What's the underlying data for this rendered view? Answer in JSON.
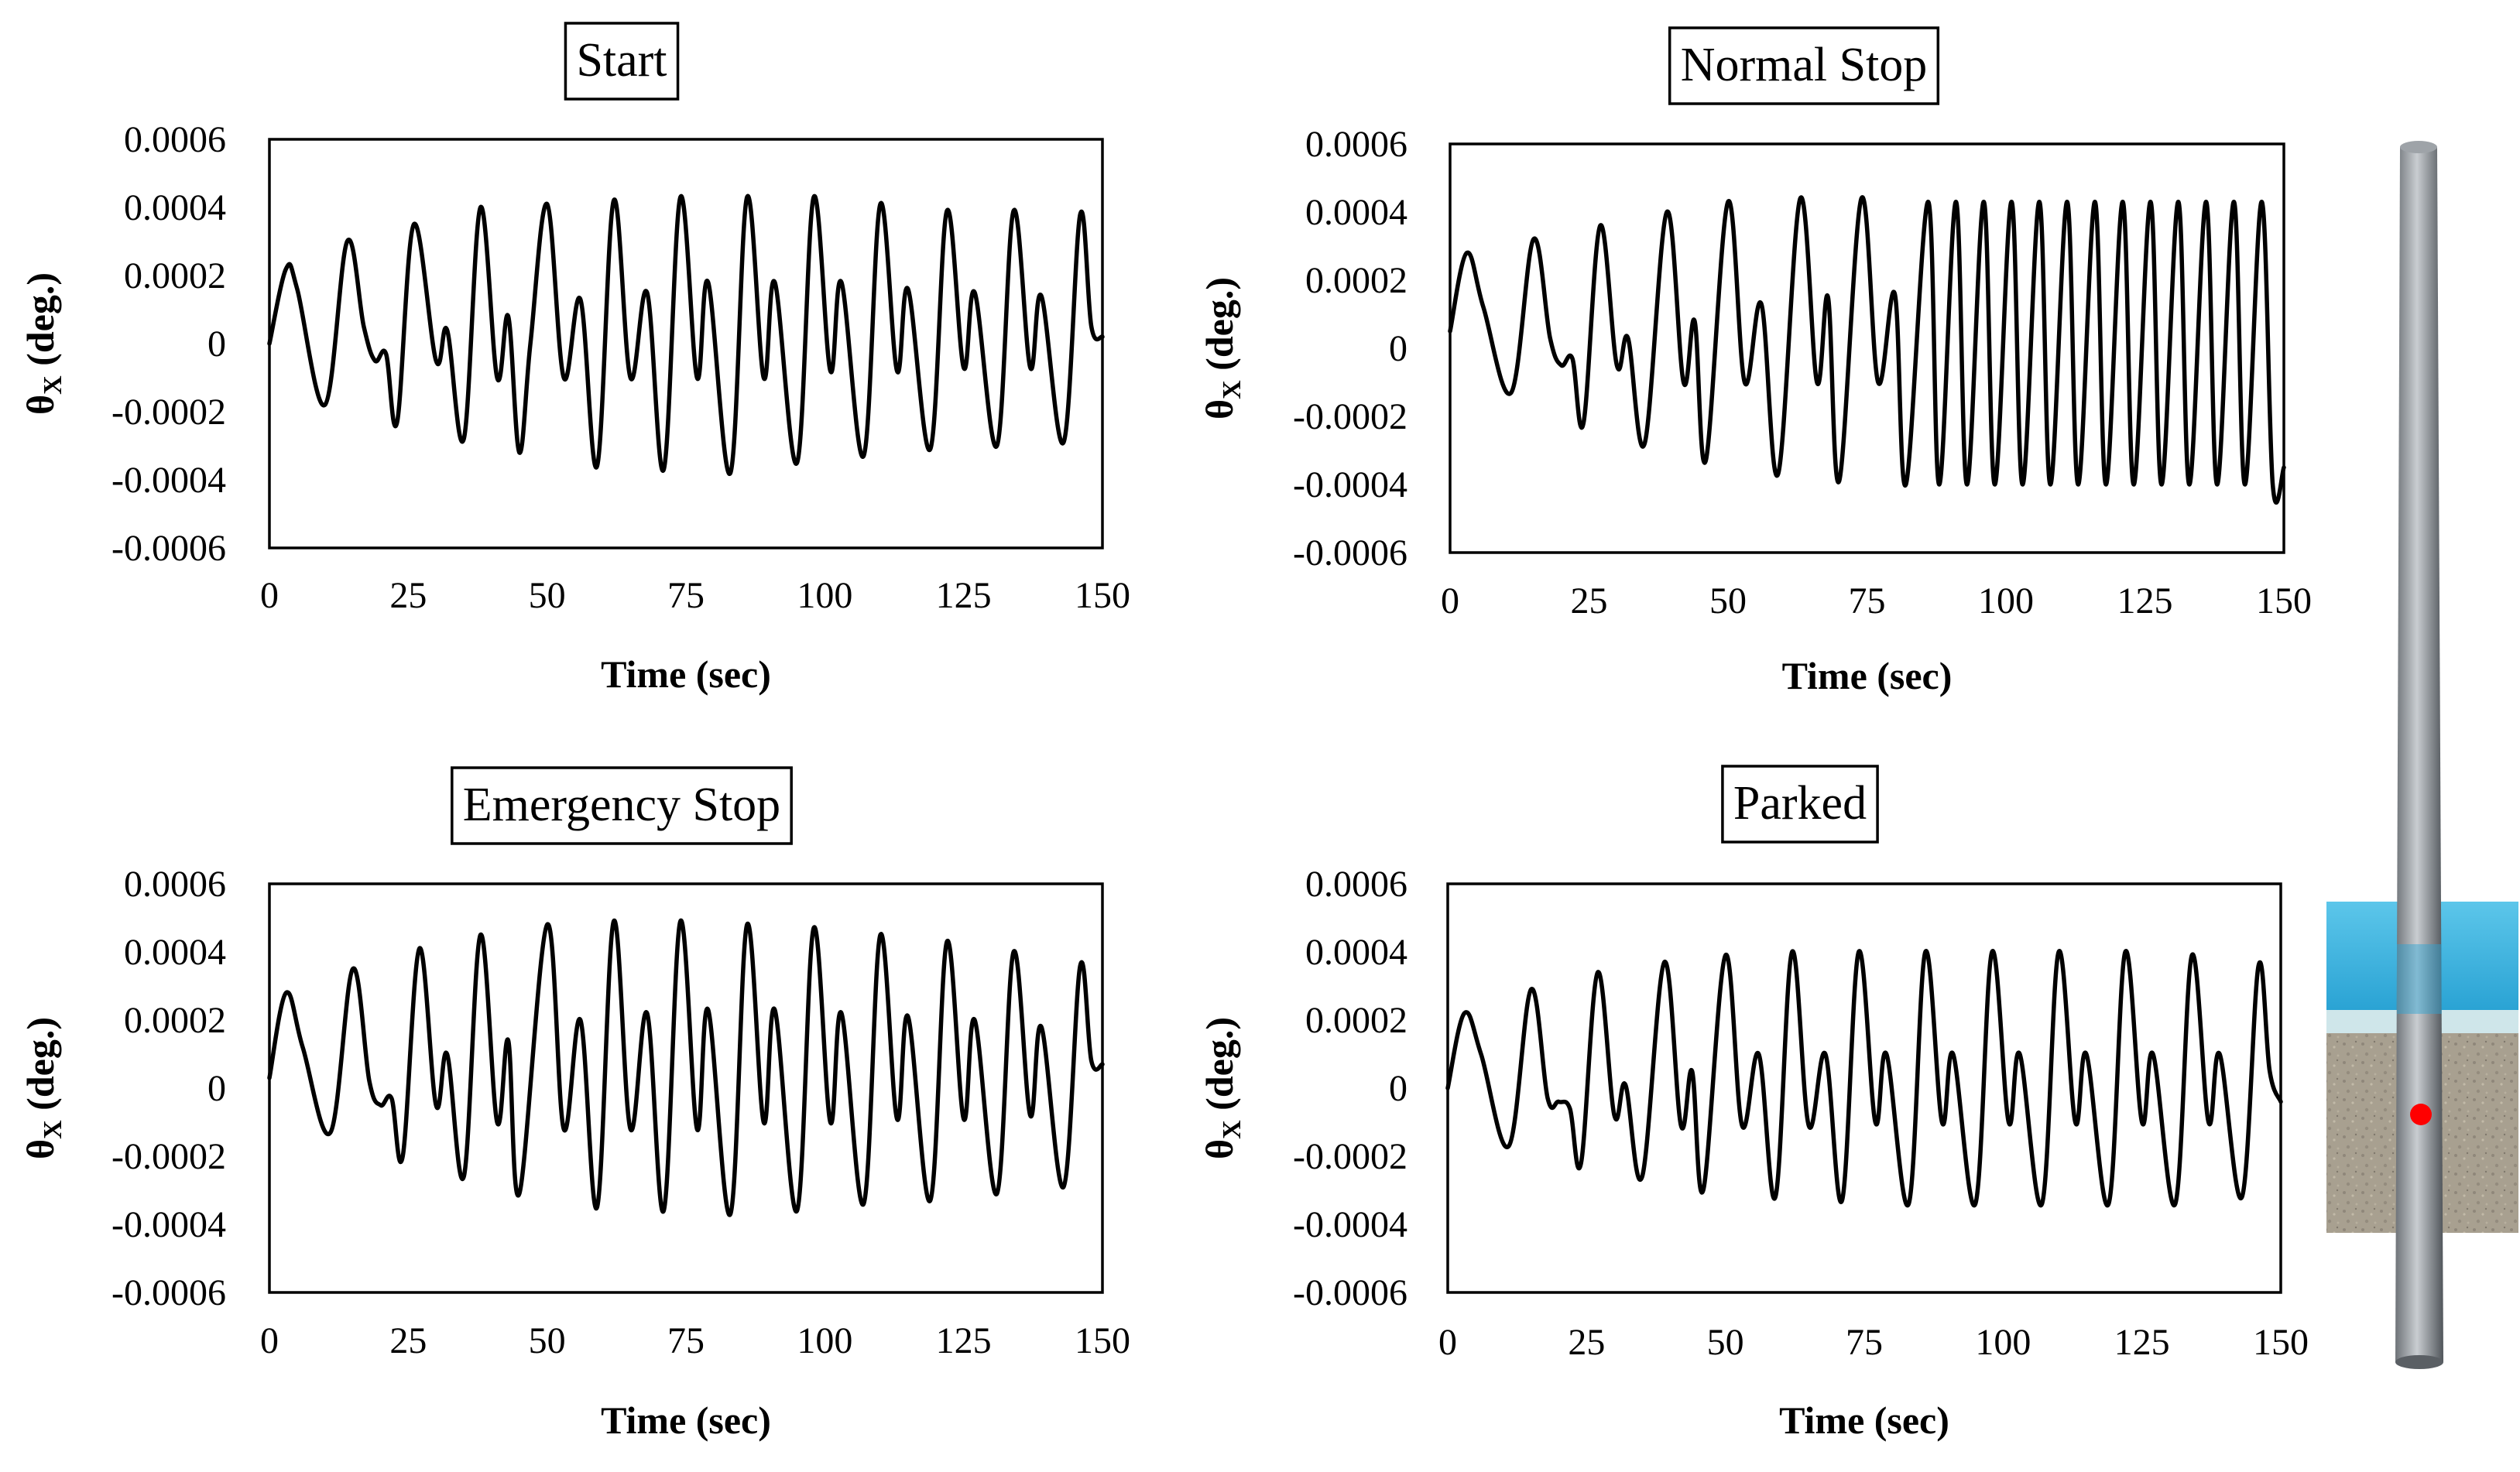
{
  "figure": {
    "marker_color": "#ff0000",
    "water_color": "#38b6e0",
    "pile_color": "#8a8f94"
  },
  "chart_data": [
    {
      "type": "line",
      "title": "Start",
      "xlabel": "Time (sec)",
      "ylabel_symbol": "θ",
      "ylabel_sub": "X",
      "ylabel_unit": " (deg.)",
      "xlim": [
        0,
        150
      ],
      "ylim": [
        -0.0006,
        0.0006
      ],
      "x_ticks": [
        "0",
        "25",
        "50",
        "75",
        "100",
        "125",
        "150"
      ],
      "y_ticks": [
        "0.0006",
        "0.0004",
        "0.0002",
        "0",
        "-0.0002",
        "-0.0004",
        "-0.0006"
      ],
      "series": [
        {
          "name": "θX",
          "x": [
            0,
            3,
            5,
            10,
            14,
            17,
            19,
            21,
            23,
            26,
            30,
            32,
            35,
            38,
            41,
            43,
            45,
            47,
            50,
            53,
            56,
            59,
            62,
            65,
            68,
            71,
            74,
            77,
            79,
            83,
            86,
            89,
            91,
            95,
            98,
            101,
            103,
            107,
            110,
            113,
            115,
            119,
            122,
            125,
            127,
            131,
            134,
            137,
            139,
            143,
            146,
            148,
            150
          ],
          "values": [
            0.0,
            0.00022,
            0.00016,
            -0.00018,
            0.0003,
            5e-05,
            -5e-05,
            -3e-05,
            -0.00023,
            0.00035,
            -5e-05,
            4e-05,
            -0.00028,
            0.0004,
            -0.0001,
            8e-05,
            -0.00032,
            0.0,
            0.00041,
            -0.0001,
            0.00013,
            -0.00036,
            0.00042,
            -0.0001,
            0.00015,
            -0.00037,
            0.00043,
            -0.0001,
            0.00018,
            -0.00038,
            0.00043,
            -0.0001,
            0.00018,
            -0.00035,
            0.00043,
            -8e-05,
            0.00018,
            -0.00033,
            0.00041,
            -8e-05,
            0.00016,
            -0.00031,
            0.00039,
            -7e-05,
            0.00015,
            -0.0003,
            0.00039,
            -7e-05,
            0.00014,
            -0.00029,
            0.00038,
            5e-05,
            2e-05
          ]
        }
      ]
    },
    {
      "type": "line",
      "title": "Normal Stop",
      "xlabel": "Time (sec)",
      "ylabel_symbol": "θ",
      "ylabel_sub": "X",
      "ylabel_unit": " (deg.)",
      "xlim": [
        0,
        150
      ],
      "ylim": [
        -0.0006,
        0.0006
      ],
      "x_ticks": [
        "0",
        "25",
        "50",
        "75",
        "100",
        "125",
        "150"
      ],
      "y_ticks": [
        "0.0006",
        "0.0004",
        "0.0002",
        "0",
        "-0.0002",
        "-0.0004",
        "-0.0006"
      ],
      "series": [
        {
          "name": "θX",
          "x": [
            0,
            3,
            6,
            11,
            15,
            18,
            20,
            22,
            24,
            27,
            30,
            32,
            35,
            39,
            42,
            44,
            46,
            50,
            53,
            56,
            59,
            63,
            66,
            68,
            70,
            74,
            77,
            80,
            82,
            86,
            88,
            91,
            93,
            96,
            98,
            101,
            103,
            106,
            108,
            111,
            113,
            116,
            118,
            121,
            123,
            126,
            128,
            131,
            133,
            136,
            138,
            141,
            143,
            146,
            148,
            150
          ],
          "values": [
            5e-05,
            0.00028,
            0.00012,
            -0.00013,
            0.00032,
            3e-05,
            -5e-05,
            -3e-05,
            -0.00022,
            0.00036,
            -5e-05,
            3e-05,
            -0.00028,
            0.0004,
            -0.0001,
            8e-05,
            -0.00033,
            0.00043,
            -0.0001,
            0.00013,
            -0.00037,
            0.00044,
            -0.0001,
            0.00015,
            -0.00039,
            0.00044,
            -0.0001,
            0.00016,
            -0.0004,
            0.00043,
            -0.0004,
            0.00043,
            -0.0004,
            0.00043,
            -0.0004,
            0.00043,
            -0.0004,
            0.00043,
            -0.0004,
            0.00043,
            -0.0004,
            0.00043,
            -0.0004,
            0.00043,
            -0.0004,
            0.00043,
            -0.0004,
            0.00043,
            -0.0004,
            0.00043,
            -0.0004,
            0.00043,
            -0.0004,
            0.00043,
            -0.0004,
            -0.00035
          ]
        }
      ]
    },
    {
      "type": "line",
      "title": "Emergency Stop",
      "xlabel": "Time (sec)",
      "ylabel_symbol": "θ",
      "ylabel_sub": "X",
      "ylabel_unit": " (deg.)",
      "xlim": [
        0,
        150
      ],
      "ylim": [
        -0.0006,
        0.0006
      ],
      "x_ticks": [
        "0",
        "25",
        "50",
        "75",
        "100",
        "125",
        "150"
      ],
      "y_ticks": [
        "0.0006",
        "0.0004",
        "0.0002",
        "0",
        "-0.0002",
        "-0.0004",
        "-0.0006"
      ],
      "series": [
        {
          "name": "θX",
          "x": [
            0,
            3,
            6,
            11,
            15,
            18,
            20,
            22,
            24,
            27,
            30,
            32,
            35,
            38,
            41,
            43,
            45,
            50,
            53,
            56,
            59,
            62,
            65,
            68,
            71,
            74,
            77,
            79,
            83,
            86,
            89,
            91,
            95,
            98,
            101,
            103,
            107,
            110,
            113,
            115,
            119,
            122,
            125,
            127,
            131,
            134,
            137,
            139,
            143,
            146,
            148,
            150
          ],
          "values": [
            3e-05,
            0.00028,
            0.00012,
            -0.00013,
            0.00035,
            2e-05,
            -5e-05,
            -3e-05,
            -0.0002,
            0.00041,
            -5e-05,
            0.0001,
            -0.00026,
            0.00045,
            -0.0001,
            0.00014,
            -0.00031,
            0.00048,
            -0.00012,
            0.0002,
            -0.00035,
            0.00049,
            -0.00012,
            0.00022,
            -0.00036,
            0.00049,
            -0.00012,
            0.00023,
            -0.00037,
            0.00048,
            -0.0001,
            0.00023,
            -0.00036,
            0.00047,
            -0.0001,
            0.00022,
            -0.00034,
            0.00045,
            -9e-05,
            0.00021,
            -0.00033,
            0.00043,
            -9e-05,
            0.0002,
            -0.00031,
            0.0004,
            -8e-05,
            0.00018,
            -0.00029,
            0.00036,
            8e-05,
            7e-05
          ]
        }
      ]
    },
    {
      "type": "line",
      "title": "Parked",
      "xlabel": "Time (sec)",
      "ylabel_symbol": "θ",
      "ylabel_sub": "X",
      "ylabel_unit": " (deg.)",
      "xlim": [
        0,
        150
      ],
      "ylim": [
        -0.0006,
        0.0006
      ],
      "x_ticks": [
        "0",
        "25",
        "50",
        "75",
        "100",
        "125",
        "150"
      ],
      "y_ticks": [
        "0.0006",
        "0.0004",
        "0.0002",
        "0",
        "-0.0002",
        "-0.0004",
        "-0.0006"
      ],
      "series": [
        {
          "name": "θX",
          "x": [
            0,
            3,
            6,
            11,
            15,
            18,
            20,
            22,
            24,
            27,
            30,
            32,
            35,
            39,
            42,
            44,
            46,
            50,
            53,
            56,
            59,
            62,
            65,
            68,
            71,
            74,
            77,
            79,
            83,
            86,
            89,
            91,
            95,
            98,
            101,
            103,
            107,
            110,
            113,
            115,
            119,
            122,
            125,
            127,
            131,
            134,
            137,
            139,
            143,
            146,
            148,
            150
          ],
          "values": [
            0.0,
            0.00022,
            0.0001,
            -0.00017,
            0.00029,
            -3e-05,
            -4e-05,
            -6e-05,
            -0.00022,
            0.00034,
            -8e-05,
            1e-05,
            -0.00026,
            0.00037,
            -0.00011,
            5e-05,
            -0.0003,
            0.00039,
            -0.00011,
            0.0001,
            -0.00032,
            0.0004,
            -0.00011,
            0.0001,
            -0.00033,
            0.0004,
            -0.0001,
            0.0001,
            -0.00034,
            0.0004,
            -0.0001,
            0.0001,
            -0.00034,
            0.0004,
            -0.0001,
            0.0001,
            -0.00034,
            0.0004,
            -0.0001,
            0.0001,
            -0.00034,
            0.0004,
            -0.0001,
            0.0001,
            -0.00034,
            0.00039,
            -0.0001,
            0.0001,
            -0.00032,
            0.00036,
            5e-05,
            -4e-05
          ]
        }
      ]
    }
  ]
}
